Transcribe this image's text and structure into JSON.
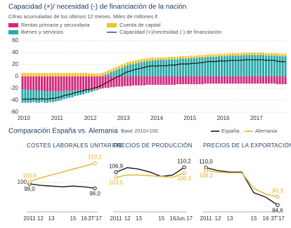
{
  "chart_data": [
    {
      "type": "bar",
      "stacked": true,
      "title": "Capacidad (+)/ necesidad (-) de financiación de la nación",
      "subtitle": "Cifras acumuladas de los últimos 12 meses. Miles de millones €",
      "categories": [
        "2010",
        null,
        null,
        null,
        null,
        null,
        null,
        null,
        null,
        null,
        null,
        null,
        "2011",
        null,
        null,
        null,
        null,
        null,
        null,
        null,
        null,
        null,
        null,
        null,
        "2012",
        null,
        null,
        null,
        null,
        null,
        null,
        null,
        null,
        null,
        null,
        null,
        "2013",
        null,
        null,
        null,
        null,
        null,
        null,
        null,
        null,
        null,
        null,
        null,
        "2014",
        null,
        null,
        null,
        null,
        null,
        null,
        null,
        null,
        null,
        null,
        null,
        "2015",
        null,
        null,
        null,
        null,
        null,
        null,
        null,
        null,
        null,
        null,
        null,
        "2016",
        null,
        null,
        null,
        null,
        null,
        null,
        null,
        null,
        null,
        null,
        null,
        "2017",
        null,
        null,
        null,
        null,
        null,
        null,
        null,
        null,
        null,
        null,
        null
      ],
      "series": [
        {
          "name": "Rentas primaria y secundaria",
          "color": "#d6287e",
          "values": [
            -22,
            -22,
            -23,
            -23,
            -23,
            -24,
            -24,
            -24,
            -25,
            -25,
            -25,
            -25,
            -25,
            -25,
            -25,
            -24,
            -24,
            -24,
            -24,
            -23,
            -23,
            -23,
            -23,
            -22,
            -22,
            -22,
            -21,
            -21,
            -20,
            -20,
            -19,
            -19,
            -18,
            -18,
            -17,
            -17,
            -17,
            -16,
            -16,
            -16,
            -15,
            -15,
            -15,
            -15,
            -15,
            -14,
            -14,
            -14,
            -14,
            -14,
            -14,
            -14,
            -14,
            -14,
            -14,
            -14,
            -13,
            -13,
            -13,
            -13,
            -13,
            -13,
            -13,
            -13,
            -13,
            -13,
            -12,
            -12,
            -12,
            -12,
            -12,
            -12,
            -12,
            -12,
            -12,
            -12,
            -12,
            -12,
            -12,
            -12,
            -12,
            -12,
            -12,
            -12,
            -12,
            -12,
            -12,
            -12,
            -12,
            -12,
            -12,
            -12,
            -13,
            -13,
            -13,
            -13
          ]
        },
        {
          "name": "Bienes y servicios",
          "color": "#2aa8a8",
          "values": [
            -22,
            -22,
            -21,
            -21,
            -20,
            -20,
            -20,
            -19,
            -19,
            -19,
            -18,
            -18,
            -17,
            -16,
            -15,
            -14,
            -13,
            -12,
            -11,
            -10,
            -9,
            -8,
            -7,
            -6,
            -5,
            -4,
            -3,
            -2,
            -1,
            1,
            3,
            5,
            7,
            9,
            11,
            13,
            15,
            17,
            19,
            20,
            21,
            22,
            23,
            24,
            25,
            26,
            26,
            27,
            27,
            28,
            28,
            28,
            28,
            29,
            29,
            29,
            29,
            30,
            30,
            30,
            30,
            31,
            31,
            31,
            32,
            32,
            32,
            33,
            33,
            33,
            33,
            34,
            34,
            34,
            34,
            35,
            35,
            35,
            35,
            35,
            36,
            36,
            36,
            36,
            36,
            36,
            36,
            36,
            35,
            35,
            35,
            35,
            35,
            34,
            34,
            34
          ]
        },
        {
          "name": "Cuenta de capital",
          "color": "#f2c12e",
          "values": [
            6,
            6,
            6,
            6,
            6,
            6,
            6,
            6,
            6,
            6,
            6,
            6,
            6,
            6,
            6,
            6,
            6,
            6,
            6,
            6,
            6,
            6,
            6,
            6,
            5,
            5,
            5,
            5,
            5,
            5,
            5,
            5,
            5,
            5,
            5,
            5,
            5,
            5,
            5,
            5,
            5,
            5,
            5,
            5,
            5,
            5,
            5,
            5,
            4,
            4,
            4,
            4,
            4,
            4,
            4,
            4,
            4,
            4,
            4,
            4,
            4,
            4,
            4,
            4,
            4,
            4,
            4,
            4,
            4,
            4,
            4,
            4,
            4,
            4,
            4,
            4,
            4,
            4,
            4,
            4,
            4,
            4,
            4,
            4,
            4,
            4,
            4,
            4,
            4,
            4,
            4,
            4,
            4,
            4,
            4,
            4
          ]
        },
        {
          "name": "Capacidad (+)/necesidad (-) de financiación",
          "color": "#1a1a1a",
          "kind": "line",
          "values": [
            -38,
            -38,
            -38,
            -38,
            -37,
            -38,
            -38,
            -37,
            -38,
            -38,
            -37,
            -37,
            -36,
            -35,
            -34,
            -32,
            -31,
            -30,
            -29,
            -27,
            -26,
            -25,
            -24,
            -22,
            -22,
            -21,
            -19,
            -18,
            -16,
            -14,
            -11,
            -9,
            -6,
            -4,
            -1,
            1,
            3,
            6,
            8,
            9,
            11,
            12,
            13,
            14,
            15,
            17,
            17,
            18,
            17,
            18,
            18,
            18,
            18,
            19,
            19,
            19,
            20,
            21,
            21,
            21,
            21,
            22,
            22,
            22,
            23,
            23,
            24,
            25,
            25,
            25,
            25,
            26,
            26,
            26,
            26,
            27,
            27,
            27,
            27,
            27,
            28,
            28,
            28,
            28,
            28,
            28,
            28,
            28,
            27,
            27,
            27,
            27,
            26,
            25,
            25,
            25
          ]
        }
      ],
      "ylim": [
        -60,
        60
      ],
      "yticks": [
        -60,
        -40,
        -20,
        0,
        20,
        40,
        60
      ],
      "grid": true
    },
    {
      "type": "line",
      "title": "COSTES LABORALES UNITARIOS",
      "section_title": "Comparación España vs. Alemania",
      "section_subtitle": "Base 2010=100",
      "categories": [
        "2011",
        "12",
        "13",
        null,
        "15",
        "16",
        "3T'17"
      ],
      "series": [
        {
          "name": "España",
          "color": "#1a1a1a",
          "values": [
            99.0,
            98,
            97.5,
            97,
            97.5,
            97,
            96.0
          ],
          "value_labels": [
            "99,0",
            null,
            null,
            null,
            null,
            null,
            "96,0"
          ]
        },
        {
          "name": "Alemania",
          "color": "#e8b030",
          "values": [
            100.6,
            103,
            105,
            107,
            109,
            111,
            113.1
          ],
          "value_labels": [
            "100,6",
            null,
            null,
            null,
            null,
            null,
            "113,1"
          ]
        }
      ],
      "ylim": [
        80,
        120
      ],
      "yticks": [
        100
      ],
      "grid": true
    },
    {
      "type": "line",
      "title": "PRECIOS DE PRODUCCIÓN",
      "categories": [
        "2011",
        "12",
        "13",
        null,
        "15",
        "16",
        "Jun.17"
      ],
      "series": [
        {
          "name": "España",
          "color": "#1a1a1a",
          "values": [
            106.9,
            110,
            109,
            107,
            104,
            105,
            110.2
          ],
          "value_labels": [
            "106,9",
            null,
            null,
            null,
            null,
            null,
            "110,2"
          ]
        },
        {
          "name": "Alemania",
          "color": "#e8b030",
          "values": [
            103.5,
            105,
            105,
            104.5,
            104,
            103.5,
            106.3
          ],
          "value_labels": [
            "103,5",
            null,
            null,
            null,
            null,
            null,
            "106,3"
          ]
        }
      ],
      "ylim": [
        80,
        120
      ],
      "grid": true
    },
    {
      "type": "line",
      "title": "PRECIOS DE LA EXPORTACIÓN",
      "categories": [
        "2011",
        "12",
        "13",
        null,
        "15",
        "16",
        "3T'17"
      ],
      "series": [
        {
          "name": "España",
          "color": "#1a1a1a",
          "values": [
            110.0,
            108,
            107,
            107,
            93,
            90,
            84.6
          ],
          "value_labels": [
            "110,0",
            null,
            null,
            null,
            null,
            null,
            "84,6"
          ]
        },
        {
          "name": "Alemania",
          "color": "#e8b030",
          "values": [
            108.2,
            107,
            106.5,
            106.5,
            96,
            92,
            90.3
          ],
          "value_labels": [
            "108,2",
            null,
            null,
            null,
            null,
            null,
            "90,3"
          ]
        }
      ],
      "ylim": [
        80,
        120
      ],
      "grid": true
    }
  ]
}
